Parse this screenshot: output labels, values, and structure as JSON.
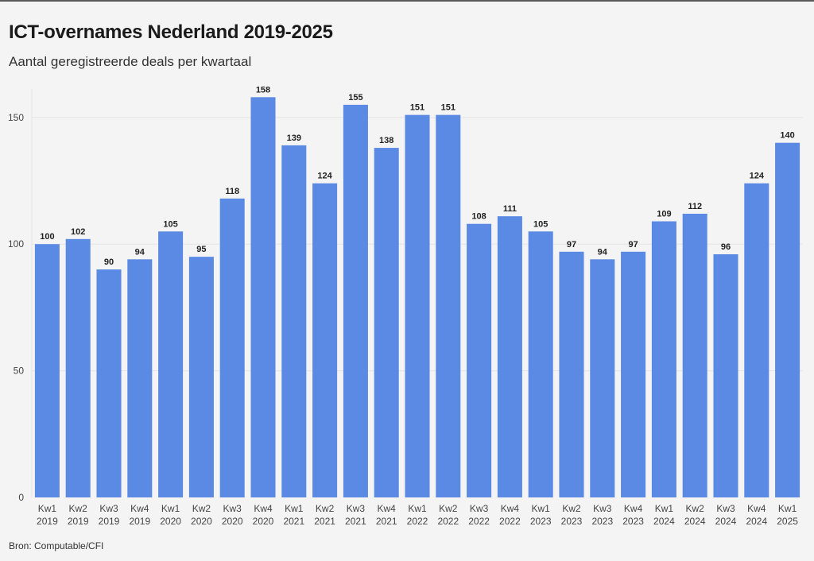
{
  "header": {
    "title": "ICT-overnames Nederland 2019-2025",
    "subtitle": "Aantal geregistreerde deals per kwartaal"
  },
  "footer": {
    "source": "Bron: Computable/CFI"
  },
  "colors": {
    "bar": "#5b8ae5",
    "grid": "#e4e4e4",
    "axis_text": "#444444",
    "label_text": "#222222"
  },
  "chart_data": {
    "type": "bar",
    "categories": [
      [
        "Kw1",
        "2019"
      ],
      [
        "Kw2",
        "2019"
      ],
      [
        "Kw3",
        "2019"
      ],
      [
        "Kw4",
        "2019"
      ],
      [
        "Kw1",
        "2020"
      ],
      [
        "Kw2",
        "2020"
      ],
      [
        "Kw3",
        "2020"
      ],
      [
        "Kw4",
        "2020"
      ],
      [
        "Kw1",
        "2021"
      ],
      [
        "Kw2",
        "2021"
      ],
      [
        "Kw3",
        "2021"
      ],
      [
        "Kw4",
        "2021"
      ],
      [
        "Kw1",
        "2022"
      ],
      [
        "Kw2",
        "2022"
      ],
      [
        "Kw3",
        "2022"
      ],
      [
        "Kw4",
        "2022"
      ],
      [
        "Kw1",
        "2023"
      ],
      [
        "Kw2",
        "2023"
      ],
      [
        "Kw3",
        "2023"
      ],
      [
        "Kw4",
        "2023"
      ],
      [
        "Kw1",
        "2024"
      ],
      [
        "Kw2",
        "2024"
      ],
      [
        "Kw3",
        "2024"
      ],
      [
        "Kw4",
        "2024"
      ],
      [
        "Kw1",
        "2025"
      ]
    ],
    "values": [
      100,
      102,
      90,
      94,
      105,
      95,
      118,
      158,
      139,
      124,
      155,
      138,
      151,
      151,
      108,
      111,
      105,
      97,
      94,
      97,
      109,
      112,
      96,
      124,
      140
    ],
    "yticks": [
      0,
      50,
      100,
      150
    ],
    "ylim": [
      0,
      165
    ],
    "grid": true,
    "data_labels": true
  }
}
